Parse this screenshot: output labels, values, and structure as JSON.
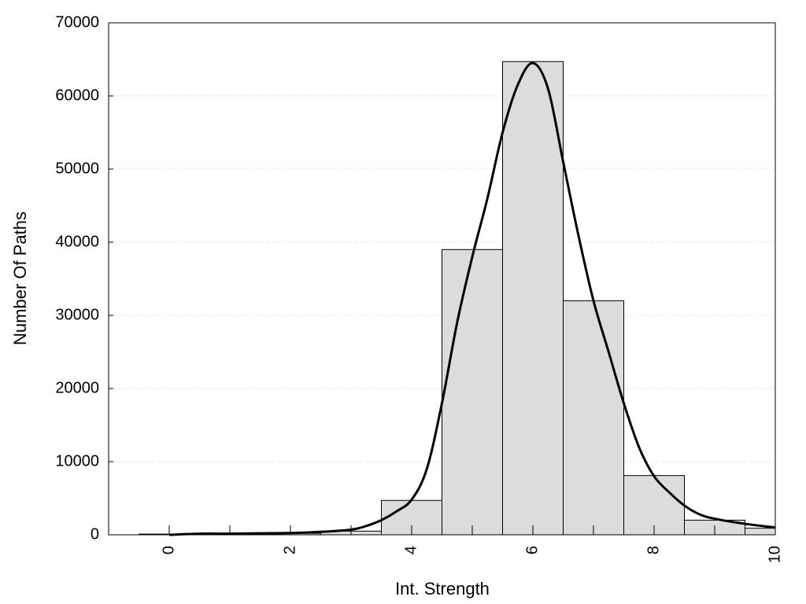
{
  "chart_data": {
    "type": "bar",
    "xlabel": "Int. Strength",
    "ylabel": "Number Of Paths",
    "xlim": [
      -1,
      10
    ],
    "ylim": [
      0,
      70000
    ],
    "x_ticks": [
      0,
      2,
      4,
      6,
      8,
      10
    ],
    "y_ticks": [
      0,
      10000,
      20000,
      30000,
      40000,
      50000,
      60000,
      70000
    ],
    "x_tick_labels": [
      "0",
      "2",
      "4",
      "6",
      "8",
      "10"
    ],
    "y_tick_labels": [
      "0",
      "10000",
      "20000",
      "30000",
      "40000",
      "50000",
      "60000",
      "70000"
    ],
    "grid": {
      "horizontal": true,
      "style": "dotted"
    },
    "colors": {
      "bar_fill": "#dcdcdc",
      "bar_stroke": "#000000",
      "curve": "#000000",
      "grid": "#c8c8c8"
    },
    "bars": [
      {
        "x": 0,
        "value": 100
      },
      {
        "x": 1,
        "value": 100
      },
      {
        "x": 2,
        "value": 200
      },
      {
        "x": 3,
        "value": 500
      },
      {
        "x": 4,
        "value": 4700
      },
      {
        "x": 5,
        "value": 39000
      },
      {
        "x": 6,
        "value": 64700
      },
      {
        "x": 7,
        "value": 32000
      },
      {
        "x": 8,
        "value": 8100
      },
      {
        "x": 9,
        "value": 2000
      },
      {
        "x": 10,
        "value": 900
      }
    ],
    "curve": {
      "type": "line",
      "x": [
        0,
        0.5,
        1,
        1.5,
        2,
        2.5,
        3,
        3.25,
        3.5,
        3.75,
        4,
        4.25,
        4.5,
        4.75,
        5,
        5.25,
        5.5,
        5.75,
        6,
        6.25,
        6.5,
        6.75,
        7,
        7.25,
        7.5,
        7.75,
        8,
        8.25,
        8.5,
        8.75,
        9,
        9.5,
        10
      ],
      "y": [
        0,
        150,
        150,
        200,
        250,
        400,
        700,
        1200,
        2000,
        3200,
        4800,
        9000,
        18000,
        29000,
        38000,
        46000,
        55000,
        61500,
        64500,
        61000,
        51000,
        41000,
        32000,
        25000,
        18000,
        12000,
        8000,
        5800,
        4000,
        2800,
        2200,
        1500,
        1000
      ]
    }
  }
}
